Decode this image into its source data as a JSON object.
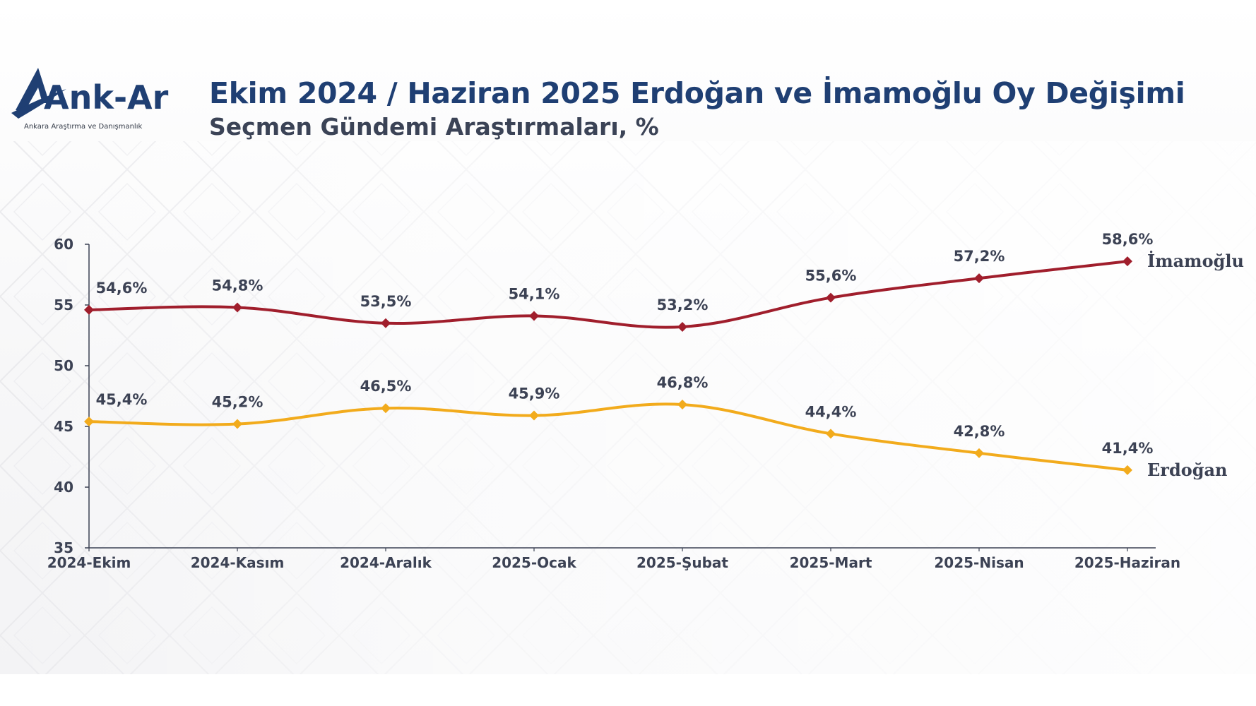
{
  "header": {
    "logo_text": "Ank-Ar",
    "logo_subtext": "Ankara Araştırma ve Danışmanlık",
    "title": "Ekim 2024 / Haziran 2025 Erdoğan ve İmamoğlu Oy Değişimi",
    "subtitle": "Seçmen Gündemi Araştırmaları, %"
  },
  "colors": {
    "title": "#1f3f73",
    "imamoglu": "#a01e2c",
    "erdogan": "#f2ab1c",
    "axis": "#3c4254"
  },
  "chart_data": {
    "type": "line",
    "title": "Ekim 2024 / Haziran 2025 Erdoğan ve İmamoğlu Oy Değişimi",
    "subtitle": "Seçmen Gündemi Araştırmaları, %",
    "xlabel": "",
    "ylabel": "",
    "ylim": [
      35,
      60
    ],
    "yticks": [
      35,
      40,
      45,
      50,
      55,
      60
    ],
    "grid": false,
    "legend": "series names at right end of lines",
    "categories": [
      "2024-Ekim",
      "2024-Kasım",
      "2024-Aralık",
      "2025-Ocak",
      "2025-Şubat",
      "2025-Mart",
      "2025-Nisan",
      "2025-Haziran"
    ],
    "series": [
      {
        "name": "İmamoğlu",
        "color": "#a01e2c",
        "values": [
          54.6,
          54.8,
          53.5,
          54.1,
          53.2,
          55.6,
          57.2,
          58.6
        ],
        "labels": [
          "54,6%",
          "54,8%",
          "53,5%",
          "54,1%",
          "53,2%",
          "55,6%",
          "57,2%",
          "58,6%"
        ]
      },
      {
        "name": "Erdoğan",
        "color": "#f2ab1c",
        "values": [
          45.4,
          45.2,
          46.5,
          45.9,
          46.8,
          44.4,
          42.8,
          41.4
        ],
        "labels": [
          "45,4%",
          "45,2%",
          "46,5%",
          "45,9%",
          "46,8%",
          "44,4%",
          "42,8%",
          "41,4%"
        ]
      }
    ]
  }
}
